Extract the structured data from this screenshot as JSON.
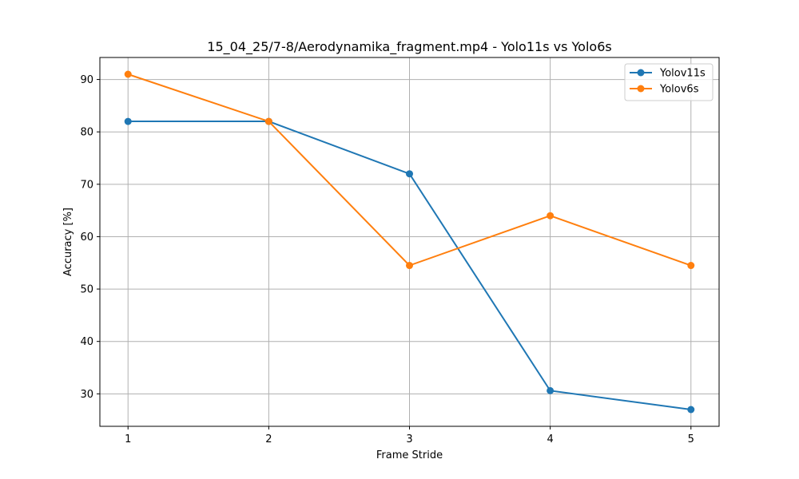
{
  "chart_data": {
    "type": "line",
    "title": "15_04_25/7-8/Aerodynamika_fragment.mp4 - Yolo11s vs Yolo6s",
    "xlabel": "Frame Stride",
    "ylabel": "Accuracy [%]",
    "x": [
      1,
      2,
      3,
      4,
      5
    ],
    "xticks": [
      "1",
      "2",
      "3",
      "4",
      "5"
    ],
    "yticks": [
      "30",
      "40",
      "50",
      "60",
      "70",
      "80",
      "90"
    ],
    "xlim": [
      0.8,
      5.2
    ],
    "ylim": [
      23.8,
      94.2
    ],
    "grid": true,
    "legend_position": "top-right",
    "series": [
      {
        "name": "Yolov11s",
        "color": "#1f77b4",
        "values": [
          82,
          82,
          72,
          30.6,
          27
        ]
      },
      {
        "name": "Yolov6s",
        "color": "#ff7f0e",
        "values": [
          91,
          82,
          54.5,
          64,
          54.5
        ]
      }
    ]
  }
}
